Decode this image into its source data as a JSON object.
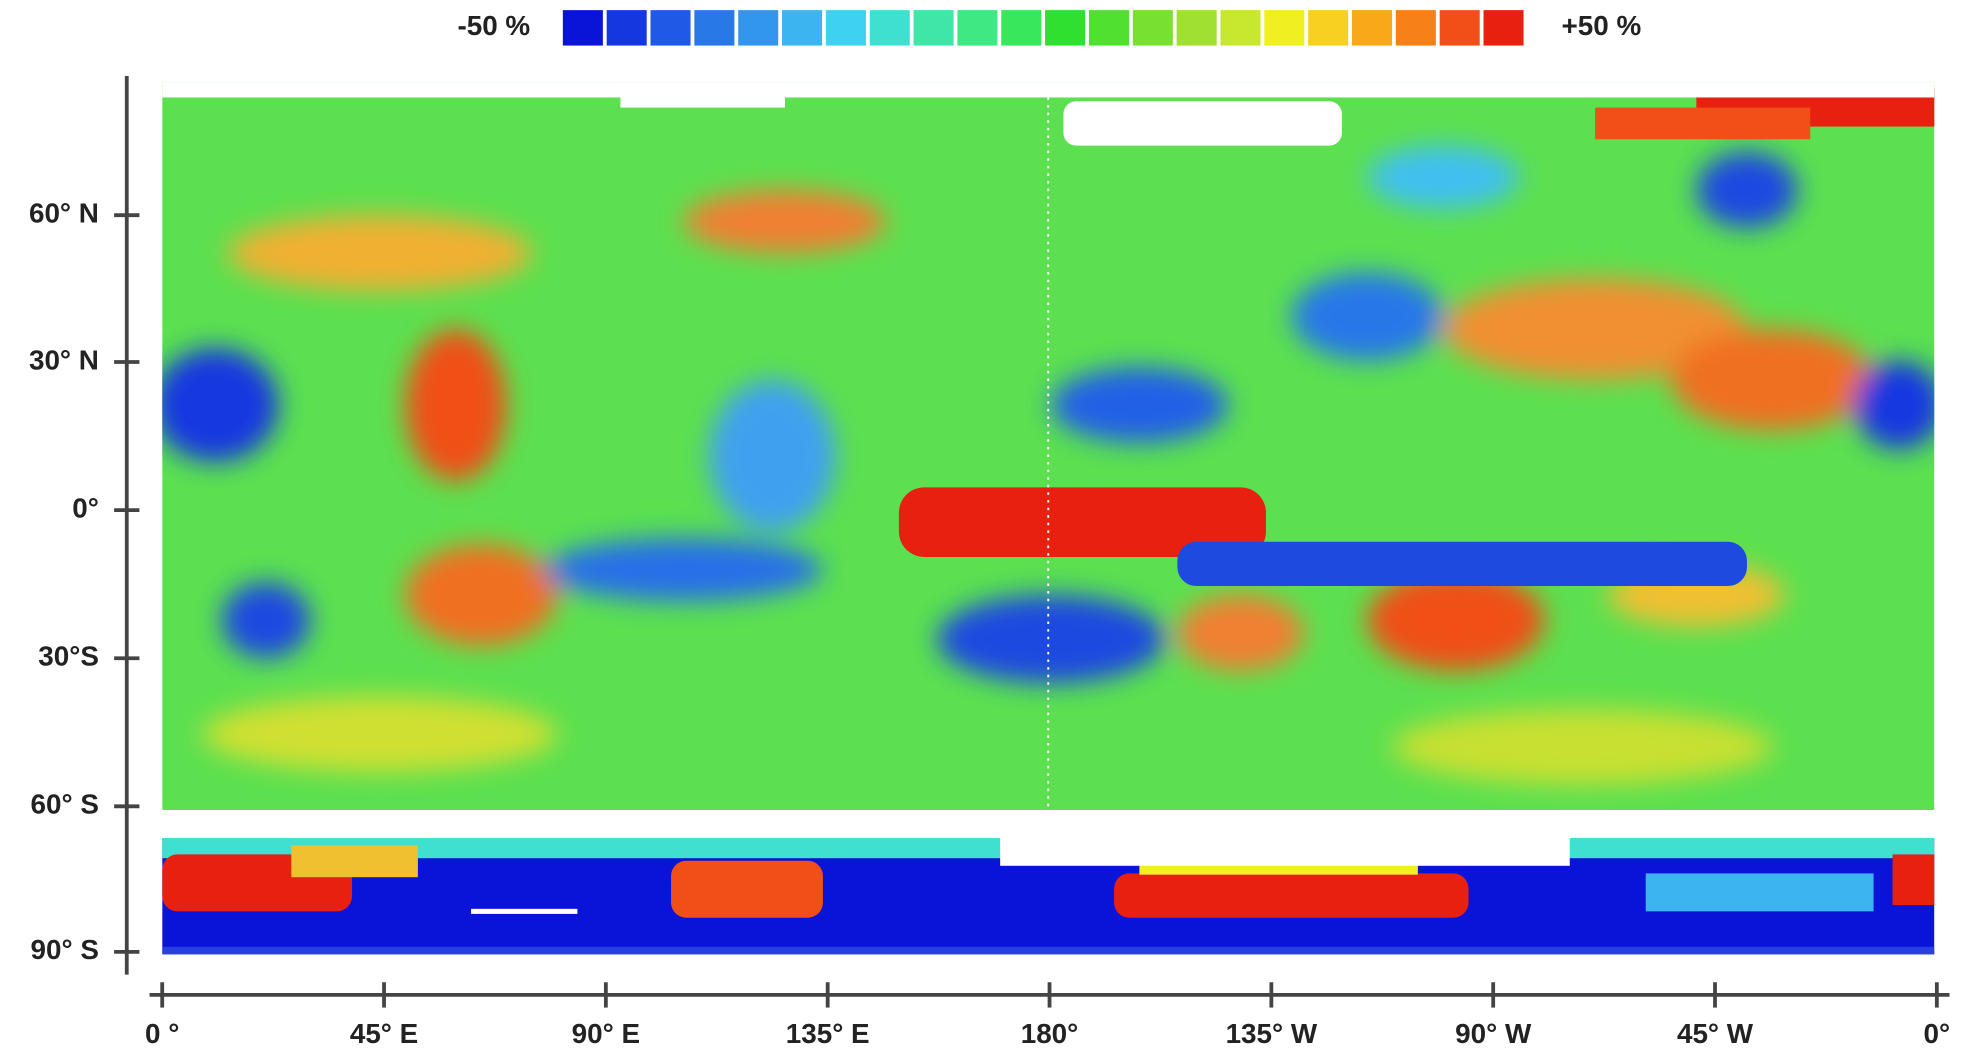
{
  "colorbar": {
    "min_label": "-50 %",
    "max_label": "+50 %",
    "colors": [
      "#0a14d8",
      "#1438e0",
      "#1e5ae6",
      "#2878e8",
      "#3296ee",
      "#3cb4f0",
      "#3ed2f0",
      "#40e0d0",
      "#40e6a8",
      "#3ee882",
      "#38e85a",
      "#30e030",
      "#50e030",
      "#78e030",
      "#a0e030",
      "#c8e830",
      "#f0f020",
      "#f8d020",
      "#f8a818",
      "#f88018",
      "#f05018",
      "#e82010"
    ]
  },
  "latitude_ticks": [
    "60° N",
    "30° N",
    "0°",
    "30°S",
    "60° S",
    "90° S"
  ],
  "longitude_ticks": [
    "0 °",
    "45° E",
    "90° E",
    "135° E",
    "180°",
    "135° W",
    "90° W",
    "45° W",
    "0°"
  ]
}
